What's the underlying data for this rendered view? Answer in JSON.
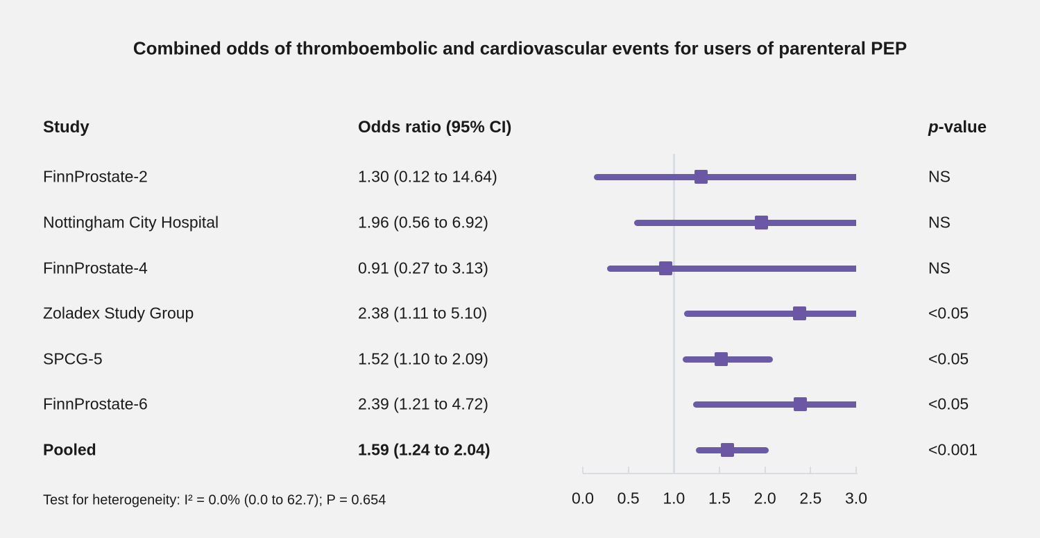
{
  "title": "Combined odds of thromboembolic and cardiovascular events for users of parenteral PEP",
  "columns": {
    "study": "Study",
    "odds_ratio": "Odds ratio (95% CI)",
    "p_italic": "p",
    "p_rest": "-value"
  },
  "footer": "Test for heterogeneity: I² = 0.0% (0.0 to 62.7); P = 0.654",
  "colors": {
    "accent": "#6b5aa5",
    "marker": "#6b57a3",
    "axis": "#d9dce2",
    "background": "#f2f2f3",
    "text": "#1a1a1a"
  },
  "chart_data": {
    "type": "forest",
    "title": "Combined odds of thromboembolic and cardiovascular events for users of parenteral PEP",
    "xlabel": "",
    "xlim": [
      0.0,
      3.0
    ],
    "xticks": [
      "0.0",
      "0.5",
      "1.0",
      "1.5",
      "2.0",
      "2.5",
      "3.0"
    ],
    "xtick_values": [
      0.0,
      0.5,
      1.0,
      1.5,
      2.0,
      2.5,
      3.0
    ],
    "reference_line": 1.0,
    "grid": false,
    "rows": [
      {
        "study": "FinnProstate-2",
        "or": 1.3,
        "ci_low": 0.12,
        "ci_high": 14.64,
        "or_label": "1.30 (0.12 to 14.64)",
        "p": "NS",
        "bold": false
      },
      {
        "study": "Nottingham City Hospital",
        "or": 1.96,
        "ci_low": 0.56,
        "ci_high": 6.92,
        "or_label": "1.96 (0.56 to 6.92)",
        "p": "NS",
        "bold": false
      },
      {
        "study": "FinnProstate-4",
        "or": 0.91,
        "ci_low": 0.27,
        "ci_high": 3.13,
        "or_label": "0.91 (0.27 to 3.13)",
        "p": "NS",
        "bold": false
      },
      {
        "study": "Zoladex Study Group",
        "or": 2.38,
        "ci_low": 1.11,
        "ci_high": 5.1,
        "or_label": "2.38 (1.11 to 5.10)",
        "p": "<0.05",
        "bold": false
      },
      {
        "study": "SPCG-5",
        "or": 1.52,
        "ci_low": 1.1,
        "ci_high": 2.09,
        "or_label": "1.52 (1.10 to 2.09)",
        "p": "<0.05",
        "bold": false
      },
      {
        "study": "FinnProstate-6",
        "or": 2.39,
        "ci_low": 1.21,
        "ci_high": 4.72,
        "or_label": "2.39 (1.21 to 4.72)",
        "p": "<0.05",
        "bold": false
      },
      {
        "study": "Pooled",
        "or": 1.59,
        "ci_low": 1.24,
        "ci_high": 2.04,
        "or_label": "1.59 (1.24 to 2.04)",
        "p": "<0.001",
        "bold": true
      }
    ]
  }
}
